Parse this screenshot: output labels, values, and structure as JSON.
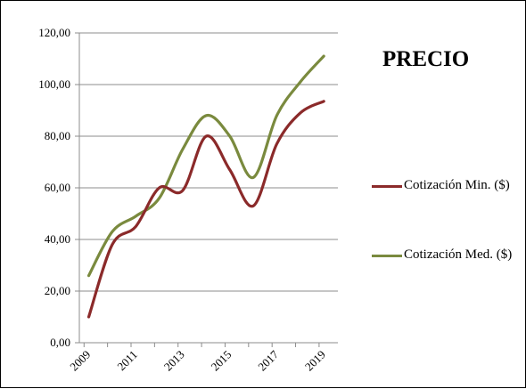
{
  "chart_data": {
    "type": "line",
    "title": "PRECIO",
    "xlabel": "",
    "ylabel": "",
    "x_ticks": [
      "2009",
      "2011",
      "2013",
      "2015",
      "2017",
      "2019"
    ],
    "y_ticks": [
      "0,00",
      "20,00",
      "40,00",
      "60,00",
      "80,00",
      "100,00",
      "120,00"
    ],
    "ylim": [
      0,
      120
    ],
    "xlim": [
      2008.8,
      2019.8
    ],
    "grid": "horizontal",
    "legend_position": "right",
    "x": [
      2009.2,
      2010.2,
      2011.2,
      2012.2,
      2013.2,
      2014.2,
      2015.2,
      2016.2,
      2017.2,
      2018.2,
      2019.2
    ],
    "series": [
      {
        "name": "Cotización Min. ($)",
        "color": "#8b2a2a",
        "values": [
          10,
          38,
          45,
          60,
          59,
          80,
          67,
          53,
          77,
          89,
          93.5
        ]
      },
      {
        "name": "Cotización Med. ($)",
        "color": "#7a8a3e",
        "values": [
          26,
          43,
          49,
          56,
          75,
          88,
          80,
          64,
          88,
          101,
          111
        ]
      }
    ]
  }
}
